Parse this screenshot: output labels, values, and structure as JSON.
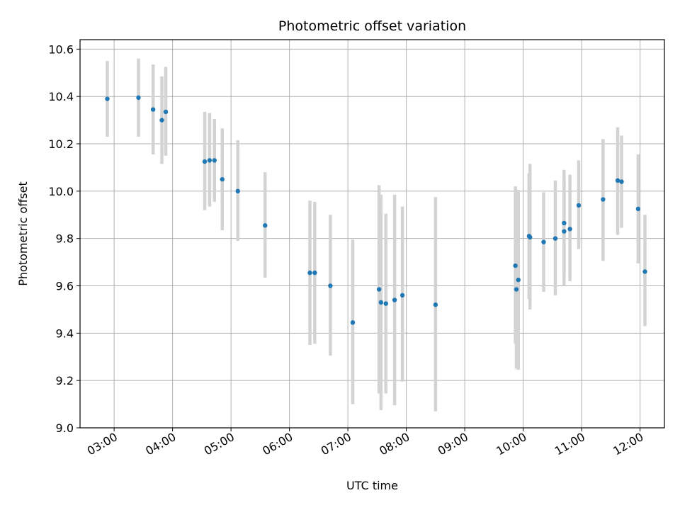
{
  "chart_data": {
    "type": "scatter",
    "title": "Photometric offset variation",
    "xlabel": "UTC time",
    "ylabel": "Photometric offset",
    "xlim": [
      "02:25",
      "12:25"
    ],
    "ylim": [
      9.0,
      10.64
    ],
    "grid": true,
    "x_ticks": [
      "03:00",
      "04:00",
      "05:00",
      "06:00",
      "07:00",
      "08:00",
      "09:00",
      "10:00",
      "11:00",
      "12:00"
    ],
    "y_ticks": [
      "9.0",
      "9.2",
      "9.4",
      "9.6",
      "9.8",
      "10.0",
      "10.2",
      "10.4",
      "10.6"
    ],
    "colors": {
      "points": "#1f77b4",
      "error_bars": "#d3d3d3",
      "grid": "#b0b0b0"
    },
    "series": [
      {
        "points": [
          {
            "x": "02:53",
            "y": 10.39,
            "ylow": 10.23,
            "yhigh": 10.55
          },
          {
            "x": "03:25",
            "y": 10.395,
            "ylow": 10.23,
            "yhigh": 10.56
          },
          {
            "x": "03:40",
            "y": 10.345,
            "ylow": 10.155,
            "yhigh": 10.535
          },
          {
            "x": "03:49",
            "y": 10.3,
            "ylow": 10.115,
            "yhigh": 10.485
          },
          {
            "x": "03:53",
            "y": 10.335,
            "ylow": 10.15,
            "yhigh": 10.525
          },
          {
            "x": "04:33",
            "y": 10.125,
            "ylow": 9.92,
            "yhigh": 10.335
          },
          {
            "x": "04:38",
            "y": 10.13,
            "ylow": 9.935,
            "yhigh": 10.33
          },
          {
            "x": "04:43",
            "y": 10.13,
            "ylow": 9.955,
            "yhigh": 10.305
          },
          {
            "x": "04:51",
            "y": 10.05,
            "ylow": 9.835,
            "yhigh": 10.265
          },
          {
            "x": "05:07",
            "y": 10.0,
            "ylow": 9.79,
            "yhigh": 10.215
          },
          {
            "x": "05:35",
            "y": 9.855,
            "ylow": 9.635,
            "yhigh": 10.08
          },
          {
            "x": "06:21",
            "y": 9.655,
            "ylow": 9.35,
            "yhigh": 9.96
          },
          {
            "x": "06:26",
            "y": 9.655,
            "ylow": 9.355,
            "yhigh": 9.955
          },
          {
            "x": "06:42",
            "y": 9.6,
            "ylow": 9.305,
            "yhigh": 9.9
          },
          {
            "x": "07:05",
            "y": 9.445,
            "ylow": 9.1,
            "yhigh": 9.795
          },
          {
            "x": "07:32",
            "y": 9.585,
            "ylow": 9.145,
            "yhigh": 10.025
          },
          {
            "x": "07:34",
            "y": 9.53,
            "ylow": 9.075,
            "yhigh": 9.985
          },
          {
            "x": "07:39",
            "y": 9.525,
            "ylow": 9.145,
            "yhigh": 9.905
          },
          {
            "x": "07:48",
            "y": 9.54,
            "ylow": 9.095,
            "yhigh": 9.985
          },
          {
            "x": "07:56",
            "y": 9.56,
            "ylow": 9.195,
            "yhigh": 9.935
          },
          {
            "x": "08:30",
            "y": 9.52,
            "ylow": 9.07,
            "yhigh": 9.975
          },
          {
            "x": "09:52",
            "y": 9.685,
            "ylow": 9.355,
            "yhigh": 10.02
          },
          {
            "x": "09:53",
            "y": 9.585,
            "ylow": 9.25,
            "yhigh": 9.905
          },
          {
            "x": "09:55",
            "y": 9.625,
            "ylow": 9.245,
            "yhigh": 10.005
          },
          {
            "x": "10:06",
            "y": 9.81,
            "ylow": 9.545,
            "yhigh": 10.075
          },
          {
            "x": "10:07",
            "y": 9.805,
            "ylow": 9.5,
            "yhigh": 10.115
          },
          {
            "x": "10:21",
            "y": 9.785,
            "ylow": 9.575,
            "yhigh": 9.995
          },
          {
            "x": "10:33",
            "y": 9.8,
            "ylow": 9.56,
            "yhigh": 10.045
          },
          {
            "x": "10:42",
            "y": 9.865,
            "ylow": 9.64,
            "yhigh": 10.09
          },
          {
            "x": "10:42",
            "y": 9.83,
            "ylow": 9.6,
            "yhigh": 10.06
          },
          {
            "x": "10:48",
            "y": 9.84,
            "ylow": 9.62,
            "yhigh": 10.07
          },
          {
            "x": "10:57",
            "y": 9.94,
            "ylow": 9.755,
            "yhigh": 10.13
          },
          {
            "x": "11:22",
            "y": 9.965,
            "ylow": 9.705,
            "yhigh": 10.22
          },
          {
            "x": "11:37",
            "y": 10.045,
            "ylow": 9.815,
            "yhigh": 10.27
          },
          {
            "x": "11:41",
            "y": 10.04,
            "ylow": 9.845,
            "yhigh": 10.235
          },
          {
            "x": "11:58",
            "y": 9.925,
            "ylow": 9.695,
            "yhigh": 10.155
          },
          {
            "x": "12:05",
            "y": 9.66,
            "ylow": 9.43,
            "yhigh": 9.9
          }
        ]
      }
    ]
  }
}
